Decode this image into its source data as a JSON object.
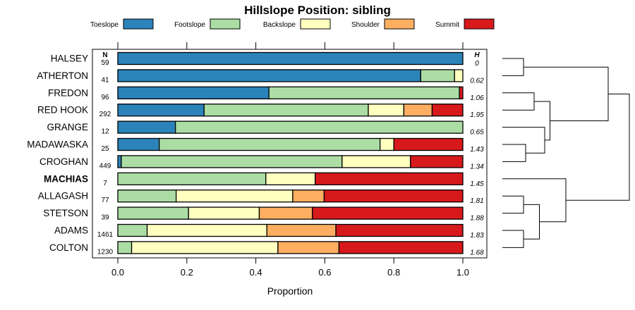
{
  "chart_data": {
    "type": "bar",
    "subtype": "stacked-horizontal-proportion",
    "title": "Hillslope Position: sibling",
    "xlabel": "Proportion",
    "xlim": [
      0,
      1
    ],
    "xticks": [
      0,
      0.2,
      0.4,
      0.6,
      0.8,
      1
    ],
    "xtick_labels": [
      "0.0",
      "0.2",
      "0.4",
      "0.6",
      "0.8",
      "1.0"
    ],
    "n_header": "N",
    "h_header": "H",
    "legend_position": "top",
    "legend": [
      {
        "name": "Toeslope",
        "color": "#2B83BA"
      },
      {
        "name": "Footslope",
        "color": "#ABDDA4"
      },
      {
        "name": "Backslope",
        "color": "#FFFFBF"
      },
      {
        "name": "Shoulder",
        "color": "#FDAE61"
      },
      {
        "name": "Summit",
        "color": "#D7191C"
      }
    ],
    "rows": [
      {
        "name": "HALSEY",
        "n": "59",
        "h": "0",
        "bold": false,
        "values": [
          1.0,
          0,
          0,
          0,
          0
        ]
      },
      {
        "name": "ATHERTON",
        "n": "41",
        "h": "0.62",
        "bold": false,
        "values": [
          0.878,
          0.098,
          0.024,
          0,
          0
        ]
      },
      {
        "name": "FREDON",
        "n": "96",
        "h": "1.06",
        "bold": false,
        "values": [
          0.438,
          0.552,
          0,
          0,
          0.01
        ]
      },
      {
        "name": "RED HOOK",
        "n": "292",
        "h": "1.95",
        "bold": false,
        "values": [
          0.25,
          0.476,
          0.103,
          0.082,
          0.089
        ]
      },
      {
        "name": "GRANGE",
        "n": "12",
        "h": "0.65",
        "bold": false,
        "values": [
          0.167,
          0.833,
          0,
          0,
          0
        ]
      },
      {
        "name": "MADAWASKA",
        "n": "25",
        "h": "1.43",
        "bold": false,
        "values": [
          0.12,
          0.64,
          0.04,
          0,
          0.2
        ]
      },
      {
        "name": "CROGHAN",
        "n": "449",
        "h": "1.34",
        "bold": false,
        "values": [
          0.01,
          0.64,
          0.198,
          0,
          0.152
        ]
      },
      {
        "name": "MACHIAS",
        "n": "7",
        "h": "1.45",
        "bold": true,
        "values": [
          0,
          0.429,
          0.143,
          0,
          0.428
        ]
      },
      {
        "name": "ALLAGASH",
        "n": "77",
        "h": "1.81",
        "bold": false,
        "values": [
          0,
          0.169,
          0.338,
          0.091,
          0.402
        ]
      },
      {
        "name": "STETSON",
        "n": "39",
        "h": "1.88",
        "bold": false,
        "values": [
          0,
          0.205,
          0.205,
          0.154,
          0.436
        ]
      },
      {
        "name": "ADAMS",
        "n": "1461",
        "h": "1.83",
        "bold": false,
        "values": [
          0,
          0.085,
          0.347,
          0.2,
          0.368
        ]
      },
      {
        "name": "COLTON",
        "n": "1230",
        "h": "1.68",
        "bold": false,
        "values": [
          0,
          0.04,
          0.424,
          0.177,
          0.359
        ]
      }
    ],
    "dendrogram": {
      "description": "hierarchical clustering of rows (merge order)",
      "merges": [
        {
          "a": "HALSEY",
          "b": "ATHERTON",
          "height": 0.2
        },
        {
          "a": "FREDON",
          "b": "RED HOOK",
          "height": 0.3
        },
        {
          "a": "MADAWASKA",
          "b": "CROGHAN",
          "height": 0.22
        },
        {
          "a": "GRANGE",
          "b": "MADAWASKA+CROGHAN",
          "height": 0.4
        },
        {
          "a": "FREDON+RED HOOK",
          "b": "GRANGE+MADAWASKA+CROGHAN",
          "height": 0.45
        },
        {
          "a": "HALSEY+ATHERTON",
          "b": "FREDON..CROGHAN",
          "height": 1.0
        },
        {
          "a": "ALLAGASH",
          "b": "STETSON",
          "height": 0.2
        },
        {
          "a": "ADAMS",
          "b": "COLTON",
          "height": 0.2
        },
        {
          "a": "ALLAGASH+STETSON",
          "b": "ADAMS+COLTON",
          "height": 0.35
        },
        {
          "a": "MACHIAS",
          "b": "ALLAGASH..COLTON",
          "height": 0.6
        },
        {
          "a": "HALSEY..CROGHAN",
          "b": "MACHIAS..COLTON",
          "height": 1.2
        }
      ]
    }
  }
}
